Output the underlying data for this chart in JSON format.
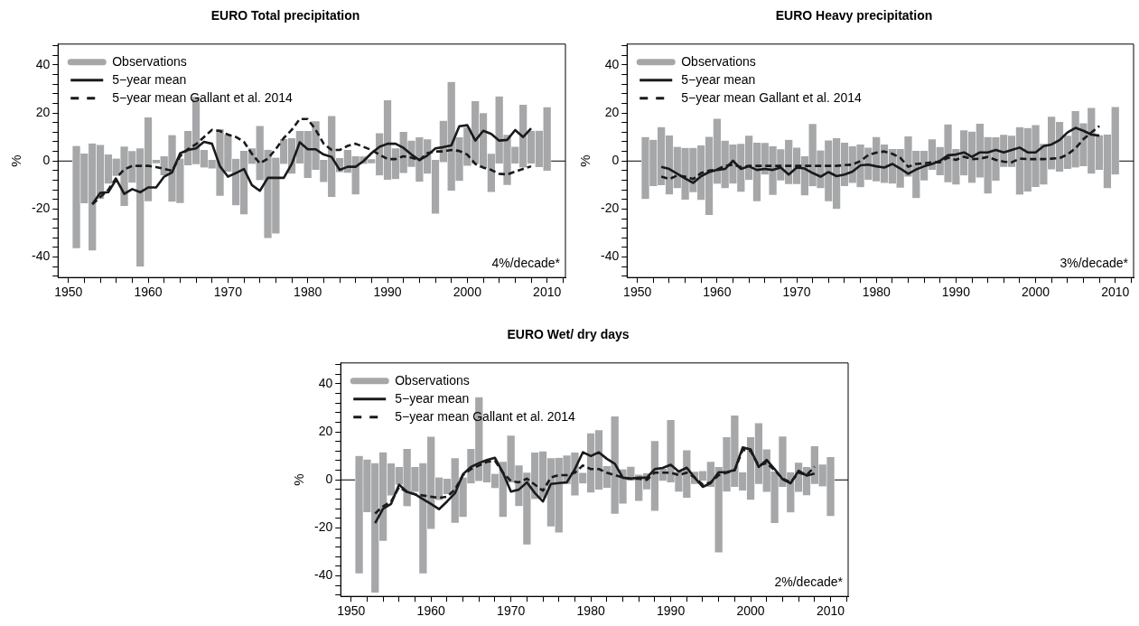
{
  "chart_data": [
    {
      "type": "bar",
      "title": "EURO Total precipitation",
      "ylabel": "%",
      "legend": "top left",
      "annotations": [
        "4%/decade*"
      ],
      "x": [
        1951,
        1952,
        1953,
        1954,
        1955,
        1956,
        1957,
        1958,
        1959,
        1960,
        1961,
        1962,
        1963,
        1964,
        1965,
        1966,
        1967,
        1968,
        1969,
        1970,
        1971,
        1972,
        1973,
        1974,
        1975,
        1976,
        1977,
        1978,
        1979,
        1980,
        1981,
        1982,
        1983,
        1984,
        1985,
        1986,
        1987,
        1988,
        1989,
        1990,
        1991,
        1992,
        1993,
        1994,
        1995,
        1996,
        1997,
        1998,
        1999,
        2000,
        2001,
        2002,
        2003,
        2004,
        2005,
        2006,
        2007,
        2008,
        2009,
        2010
      ],
      "xlim": [
        1948.7,
        2012.3
      ],
      "xticks": [
        1950,
        {
          "value": 1952,
          "label": null
        },
        {
          "value": 1954,
          "label": null
        },
        {
          "value": 1956,
          "label": null
        },
        {
          "value": 1958,
          "label": null
        },
        1960,
        {
          "value": 1962,
          "label": null
        },
        {
          "value": 1964,
          "label": null
        },
        {
          "value": 1966,
          "label": null
        },
        {
          "value": 1968,
          "label": null
        },
        1970,
        {
          "value": 1972,
          "label": null
        },
        {
          "value": 1974,
          "label": null
        },
        {
          "value": 1976,
          "label": null
        },
        {
          "value": 1978,
          "label": null
        },
        1980,
        {
          "value": 1982,
          "label": null
        },
        {
          "value": 1984,
          "label": null
        },
        {
          "value": 1986,
          "label": null
        },
        {
          "value": 1988,
          "label": null
        },
        1990,
        {
          "value": 1992,
          "label": null
        },
        {
          "value": 1994,
          "label": null
        },
        {
          "value": 1996,
          "label": null
        },
        {
          "value": 1998,
          "label": null
        },
        2000,
        {
          "value": 2002,
          "label": null
        },
        {
          "value": 2004,
          "label": null
        },
        {
          "value": 2006,
          "label": null
        },
        {
          "value": 2008,
          "label": null
        },
        2010,
        {
          "value": 2012,
          "label": null
        }
      ],
      "ylim": [
        -48.5,
        48.7
      ],
      "yticks": [
        {
          "value": -48,
          "label": null
        },
        {
          "value": -44,
          "label": null
        },
        -40,
        {
          "value": -36,
          "label": null
        },
        {
          "value": -32,
          "label": null
        },
        {
          "value": -28,
          "label": null
        },
        {
          "value": -24,
          "label": null
        },
        -20,
        {
          "value": -16,
          "label": null
        },
        {
          "value": -12,
          "label": null
        },
        {
          "value": -8,
          "label": null
        },
        {
          "value": -4,
          "label": null
        },
        0,
        {
          "value": 4,
          "label": null
        },
        {
          "value": 8,
          "label": null
        },
        {
          "value": 12,
          "label": null
        },
        {
          "value": 16,
          "label": null
        },
        20,
        {
          "value": 24,
          "label": null
        },
        {
          "value": 28,
          "label": null
        },
        {
          "value": 32,
          "label": null
        },
        {
          "value": 36,
          "label": null
        },
        40,
        {
          "value": 44,
          "label": null
        },
        {
          "value": 48,
          "label": null
        }
      ],
      "ref_lines": [
        {
          "axis": "y",
          "value": 0,
          "color": "#000000"
        }
      ],
      "series": [
        {
          "name": "Observations",
          "color": "#a6a7a9",
          "base": [
            -36.4,
            -17.7,
            -37.3,
            -15.9,
            -9.5,
            -6.3,
            -18.8,
            -9.1,
            -44,
            -16.7,
            -1,
            -6,
            -17,
            -17.6,
            -1.8,
            -1.3,
            -2.7,
            -3.2,
            -14.6,
            -4.4,
            -18.5,
            -22.3,
            -1.2,
            -8,
            -32.2,
            -30.3,
            -1.2,
            -5.3,
            -1,
            -7,
            -3.7,
            -8.8,
            -14.9,
            -4.7,
            -5,
            -14,
            -1.2,
            -1,
            -6,
            -7.8,
            -7.6,
            -5,
            -2.4,
            -8.6,
            -5.3,
            -22,
            -0.5,
            -12.4,
            -8.3,
            -2,
            -1.2,
            -3,
            -13,
            -1,
            -10,
            -1,
            -2.7,
            -1,
            -2.5,
            -4
          ],
          "values": [
            42.7,
            20.8,
            44.6,
            22.6,
            12.2,
            7.3,
            24.8,
            13.2,
            49.3,
            35,
            1.5,
            8,
            27.8,
            18.6,
            14.4,
            28.1,
            7.4,
            3.7,
            27.9,
            15.4,
            19.4,
            26.5,
            6.6,
            22.7,
            36.9,
            31.7,
            10.4,
            14.9,
            13.6,
            19.6,
            20.4,
            9.3,
            33.7,
            5.9,
            9.6,
            16,
            3.2,
            1.8,
            17.7,
            33.2,
            12.9,
            17.2,
            11,
            18.6,
            14.4,
            22.5,
            17.3,
            45.4,
            18.3,
            16,
            26.2,
            23,
            16,
            28,
            21,
            7,
            26.2,
            13.7,
            15.2,
            26.5
          ]
        },
        {
          "name": "5−year mean",
          "type": "line",
          "color": "#1a1a1a",
          "line_style": "solid",
          "x": [
            1953,
            1954,
            1955,
            1956,
            1957,
            1958,
            1959,
            1960,
            1961,
            1962,
            1963,
            1964,
            1965,
            1966,
            1967,
            1968,
            1969,
            1970,
            1971,
            1972,
            1973,
            1974,
            1975,
            1976,
            1977,
            1978,
            1979,
            1980,
            1981,
            1982,
            1983,
            1984,
            1985,
            1986,
            1987,
            1988,
            1989,
            1990,
            1991,
            1992,
            1993,
            1994,
            1995,
            1996,
            1997,
            1998,
            1999,
            2000,
            2001,
            2002,
            2003,
            2004,
            2005,
            2006,
            2007,
            2008
          ],
          "values": [
            -18,
            -13.3,
            -13,
            -7.6,
            -13.7,
            -11.7,
            -13,
            -11,
            -11,
            -6.5,
            -4.7,
            3.2,
            4.6,
            5.3,
            8,
            7.2,
            -2.2,
            -6.5,
            -5,
            -3.3,
            -10,
            -12.4,
            -7,
            -7,
            -7,
            -1.2,
            7.8,
            4.9,
            4.9,
            2.7,
            1.7,
            -3.7,
            -2.4,
            -2.4,
            0,
            3.3,
            5.9,
            7.2,
            7.2,
            5.5,
            2.7,
            0.4,
            2.3,
            5.3,
            5.8,
            6.5,
            14.5,
            14.9,
            8.5,
            12.6,
            11.3,
            8.5,
            8.8,
            12.9,
            10,
            13.6
          ]
        },
        {
          "name": "5−year mean Gallant et al. 2014",
          "type": "line",
          "color": "#1a1a1a",
          "line_style": "dashed",
          "x": [
            1953,
            1954,
            1955,
            1956,
            1957,
            1958,
            1959,
            1960,
            1961,
            1962,
            1963,
            1964,
            1965,
            1966,
            1967,
            1968,
            1969,
            1970,
            1971,
            1972,
            1973,
            1974,
            1975,
            1976,
            1977,
            1978,
            1979,
            1980,
            1981,
            1982,
            1983,
            1984,
            1985,
            1986,
            1987,
            1988,
            1989,
            1990,
            1991,
            1992,
            1993,
            1994,
            1995,
            1996,
            1997,
            1998,
            1999,
            2000,
            2001,
            2002,
            2003,
            2004,
            2005,
            2006,
            2007,
            2008
          ],
          "values": [
            -18,
            -15,
            -12,
            -7,
            -3.5,
            -2,
            -2,
            -2,
            -2.5,
            -3.3,
            -4,
            2,
            5,
            7,
            10,
            13,
            12.5,
            11,
            10,
            8,
            3,
            -1,
            1,
            5,
            9.6,
            13,
            17.5,
            17.5,
            13,
            7.2,
            4.6,
            4.6,
            6.3,
            7.2,
            5.9,
            4.6,
            2.7,
            0.8,
            0.8,
            2,
            1.4,
            0.4,
            3.3,
            4,
            4,
            4.6,
            4.2,
            2.7,
            -1.2,
            -2.7,
            -3.7,
            -5.3,
            -5.6,
            -4.4,
            -3.3,
            -2.2
          ]
        }
      ]
    },
    {
      "type": "bar",
      "title": "EURO Heavy precipitation",
      "ylabel": "%",
      "legend": "top left",
      "annotations": [
        "3%/decade*"
      ],
      "x": [
        1951,
        1952,
        1953,
        1954,
        1955,
        1956,
        1957,
        1958,
        1959,
        1960,
        1961,
        1962,
        1963,
        1964,
        1965,
        1966,
        1967,
        1968,
        1969,
        1970,
        1971,
        1972,
        1973,
        1974,
        1975,
        1976,
        1977,
        1978,
        1979,
        1980,
        1981,
        1982,
        1983,
        1984,
        1985,
        1986,
        1987,
        1988,
        1989,
        1990,
        1991,
        1992,
        1993,
        1994,
        1995,
        1996,
        1997,
        1998,
        1999,
        2000,
        2001,
        2002,
        2003,
        2004,
        2005,
        2006,
        2007,
        2008,
        2009,
        2010
      ],
      "xlim": [
        1948.7,
        2012.3
      ],
      "xticks": [
        1950,
        {
          "value": 1952,
          "label": null
        },
        {
          "value": 1954,
          "label": null
        },
        {
          "value": 1956,
          "label": null
        },
        {
          "value": 1958,
          "label": null
        },
        1960,
        {
          "value": 1962,
          "label": null
        },
        {
          "value": 1964,
          "label": null
        },
        {
          "value": 1966,
          "label": null
        },
        {
          "value": 1968,
          "label": null
        },
        1970,
        {
          "value": 1972,
          "label": null
        },
        {
          "value": 1974,
          "label": null
        },
        {
          "value": 1976,
          "label": null
        },
        {
          "value": 1978,
          "label": null
        },
        1980,
        {
          "value": 1982,
          "label": null
        },
        {
          "value": 1984,
          "label": null
        },
        {
          "value": 1986,
          "label": null
        },
        {
          "value": 1988,
          "label": null
        },
        1990,
        {
          "value": 1992,
          "label": null
        },
        {
          "value": 1994,
          "label": null
        },
        {
          "value": 1996,
          "label": null
        },
        {
          "value": 1998,
          "label": null
        },
        2000,
        {
          "value": 2002,
          "label": null
        },
        {
          "value": 2004,
          "label": null
        },
        {
          "value": 2006,
          "label": null
        },
        {
          "value": 2008,
          "label": null
        },
        2010,
        {
          "value": 2012,
          "label": null
        }
      ],
      "ylim": [
        -48.5,
        48.7
      ],
      "yticks": [
        {
          "value": -48,
          "label": null
        },
        {
          "value": -44,
          "label": null
        },
        -40,
        {
          "value": -36,
          "label": null
        },
        {
          "value": -32,
          "label": null
        },
        {
          "value": -28,
          "label": null
        },
        {
          "value": -24,
          "label": null
        },
        -20,
        {
          "value": -16,
          "label": null
        },
        {
          "value": -12,
          "label": null
        },
        {
          "value": -8,
          "label": null
        },
        {
          "value": -4,
          "label": null
        },
        0,
        {
          "value": 4,
          "label": null
        },
        {
          "value": 8,
          "label": null
        },
        {
          "value": 12,
          "label": null
        },
        {
          "value": 16,
          "label": null
        },
        20,
        {
          "value": 24,
          "label": null
        },
        {
          "value": 28,
          "label": null
        },
        {
          "value": 32,
          "label": null
        },
        {
          "value": 36,
          "label": null
        },
        40,
        {
          "value": 44,
          "label": null
        },
        {
          "value": 48,
          "label": null
        }
      ],
      "ref_lines": [
        {
          "axis": "y",
          "value": 0,
          "color": "#000000"
        }
      ],
      "series": [
        {
          "name": "Observations",
          "color": "#a6a7a9",
          "base": [
            -15.9,
            -10.5,
            -10.1,
            -14,
            -11.4,
            -16.2,
            -13.1,
            -16.3,
            -22.6,
            -9.5,
            -11.4,
            -9.5,
            -12.9,
            -7.9,
            -16.8,
            -5.6,
            -14.2,
            -8.2,
            -9.7,
            -9.7,
            -14.4,
            -10.5,
            -11.4,
            -16.8,
            -20,
            -10.5,
            -9.2,
            -11,
            -7.9,
            -8.5,
            -9.2,
            -9.5,
            -11.2,
            -6.5,
            -15.5,
            -8.2,
            -3.7,
            -5.9,
            -8.8,
            -9.9,
            -6,
            -9.1,
            -6.9,
            -13.6,
            -8.2,
            -2.4,
            -2.4,
            -14,
            -12.7,
            -10.8,
            -9.9,
            -3.5,
            -4.4,
            -3.3,
            -2.7,
            -2.2,
            -5.3,
            -3.7,
            -11.4,
            -5.6
          ],
          "values": [
            25.9,
            19.3,
            24.3,
            24.6,
            17.3,
            21.7,
            18.6,
            22.8,
            32.7,
            27.2,
            19.9,
            16.4,
            20.1,
            18.5,
            24.4,
            13.2,
            20.4,
            13.1,
            18.5,
            15.3,
            16.4,
            26,
            15.8,
            25.4,
            29.5,
            18.1,
            15.4,
            17.9,
            13.5,
            18.6,
            16.1,
            14.5,
            16.2,
            16.9,
            19.7,
            12.4,
            12.8,
            11.8,
            24.1,
            14.9,
            18.9,
            21.4,
            22.5,
            23.6,
            18.2,
            13.4,
            13,
            28.2,
            26.5,
            25.9,
            17.1,
            22,
            20.8,
            13.9,
            23.6,
            18,
            27.5,
            14.5,
            22.4,
            28.2
          ]
        },
        {
          "name": "5−year mean",
          "type": "line",
          "color": "#1a1a1a",
          "line_style": "solid",
          "x": [
            1953,
            1954,
            1955,
            1956,
            1957,
            1958,
            1959,
            1960,
            1961,
            1962,
            1963,
            1964,
            1965,
            1966,
            1967,
            1968,
            1969,
            1970,
            1971,
            1972,
            1973,
            1974,
            1975,
            1976,
            1977,
            1978,
            1979,
            1980,
            1981,
            1982,
            1983,
            1984,
            1985,
            1986,
            1987,
            1988,
            1989,
            1990,
            1991,
            1992,
            1993,
            1994,
            1995,
            1996,
            1997,
            1998,
            1999,
            2000,
            2001,
            2002,
            2003,
            2004,
            2005,
            2006,
            2007,
            2008
          ],
          "values": [
            -2.4,
            -3.3,
            -5.3,
            -7.3,
            -9.1,
            -6.3,
            -4.6,
            -3.7,
            -3.3,
            0.1,
            -3.3,
            -2.2,
            -3.7,
            -3.3,
            -3.7,
            -2.7,
            -5.6,
            -2.7,
            -3.1,
            -5,
            -6.5,
            -4.6,
            -6.3,
            -5.6,
            -4.4,
            -1.8,
            -1.5,
            -2.2,
            -2.7,
            -1.2,
            -3.1,
            -5.3,
            -3.5,
            -2.2,
            -1.2,
            0.1,
            2.4,
            2.7,
            3.6,
            1.7,
            3.6,
            3.6,
            4.6,
            3.6,
            4.6,
            5.6,
            3.6,
            3.6,
            6.2,
            6.9,
            8.7,
            11.9,
            13.8,
            12.6,
            11,
            10.6
          ]
        },
        {
          "name": "5−year mean Gallant et al. 2014",
          "type": "line",
          "color": "#1a1a1a",
          "line_style": "dashed",
          "x": [
            1953,
            1954,
            1955,
            1956,
            1957,
            1958,
            1959,
            1960,
            1961,
            1962,
            1963,
            1964,
            1965,
            1966,
            1967,
            1968,
            1969,
            1970,
            1971,
            1972,
            1973,
            1974,
            1975,
            1976,
            1977,
            1978,
            1979,
            1980,
            1981,
            1982,
            1983,
            1984,
            1985,
            1986,
            1987,
            1988,
            1989,
            1990,
            1991,
            1992,
            1993,
            1994,
            1995,
            1996,
            1997,
            1998,
            1999,
            2000,
            2001,
            2002,
            2003,
            2004,
            2005,
            2006,
            2007,
            2008
          ],
          "values": [
            -6.5,
            -7.5,
            -6,
            -6.5,
            -7.5,
            -5,
            -4,
            -3.5,
            -2,
            -1.5,
            -2.5,
            -2,
            -2,
            -2,
            -2,
            -2,
            -2,
            -2,
            -2,
            -2,
            -2,
            -2,
            -2,
            -1.7,
            -1.5,
            0,
            2.5,
            3.5,
            4,
            3,
            1.4,
            -2.4,
            -1.2,
            -1,
            -0.5,
            -0.5,
            1.4,
            0.5,
            1.8,
            0.8,
            1,
            1.7,
            0.5,
            -0.3,
            -0.5,
            1,
            0.8,
            0.8,
            0.8,
            1,
            1.2,
            2.7,
            5.3,
            9.1,
            11.9,
            14.6
          ]
        }
      ]
    },
    {
      "type": "bar",
      "title": "EURO Wet/ dry days",
      "ylabel": "%",
      "legend": "top left",
      "annotations": [
        "2%/decade*"
      ],
      "x": [
        1951,
        1952,
        1953,
        1954,
        1955,
        1956,
        1957,
        1958,
        1959,
        1960,
        1961,
        1962,
        1963,
        1964,
        1965,
        1966,
        1967,
        1968,
        1969,
        1970,
        1971,
        1972,
        1973,
        1974,
        1975,
        1976,
        1977,
        1978,
        1979,
        1980,
        1981,
        1982,
        1983,
        1984,
        1985,
        1986,
        1987,
        1988,
        1989,
        1990,
        1991,
        1992,
        1993,
        1994,
        1995,
        1996,
        1997,
        1998,
        1999,
        2000,
        2001,
        2002,
        2003,
        2004,
        2005,
        2006,
        2007,
        2008,
        2009,
        2010
      ],
      "xlim": [
        1948.7,
        2012.2
      ],
      "xticks": [
        1950,
        {
          "value": 1952,
          "label": null
        },
        {
          "value": 1954,
          "label": null
        },
        {
          "value": 1956,
          "label": null
        },
        {
          "value": 1958,
          "label": null
        },
        1960,
        {
          "value": 1962,
          "label": null
        },
        {
          "value": 1964,
          "label": null
        },
        {
          "value": 1966,
          "label": null
        },
        {
          "value": 1968,
          "label": null
        },
        1970,
        {
          "value": 1972,
          "label": null
        },
        {
          "value": 1974,
          "label": null
        },
        {
          "value": 1976,
          "label": null
        },
        {
          "value": 1978,
          "label": null
        },
        1980,
        {
          "value": 1982,
          "label": null
        },
        {
          "value": 1984,
          "label": null
        },
        {
          "value": 1986,
          "label": null
        },
        {
          "value": 1988,
          "label": null
        },
        1990,
        {
          "value": 1992,
          "label": null
        },
        {
          "value": 1994,
          "label": null
        },
        {
          "value": 1996,
          "label": null
        },
        {
          "value": 1998,
          "label": null
        },
        2000,
        {
          "value": 2002,
          "label": null
        },
        {
          "value": 2004,
          "label": null
        },
        {
          "value": 2006,
          "label": null
        },
        {
          "value": 2008,
          "label": null
        },
        2010,
        {
          "value": 2012,
          "label": null
        }
      ],
      "ylim": [
        -48.5,
        48.7
      ],
      "yticks": [
        {
          "value": -48,
          "label": null
        },
        {
          "value": -44,
          "label": null
        },
        -40,
        {
          "value": -36,
          "label": null
        },
        {
          "value": -32,
          "label": null
        },
        {
          "value": -28,
          "label": null
        },
        {
          "value": -24,
          "label": null
        },
        -20,
        {
          "value": -16,
          "label": null
        },
        {
          "value": -12,
          "label": null
        },
        {
          "value": -8,
          "label": null
        },
        {
          "value": -4,
          "label": null
        },
        0,
        {
          "value": 4,
          "label": null
        },
        {
          "value": 8,
          "label": null
        },
        {
          "value": 12,
          "label": null
        },
        {
          "value": 16,
          "label": null
        },
        20,
        {
          "value": 24,
          "label": null
        },
        {
          "value": 28,
          "label": null
        },
        {
          "value": 32,
          "label": null
        },
        {
          "value": 36,
          "label": null
        },
        40,
        {
          "value": 44,
          "label": null
        },
        {
          "value": 48,
          "label": null
        }
      ],
      "ref_lines": [
        {
          "axis": "y",
          "value": 0,
          "color": "#000000"
        }
      ],
      "series": [
        {
          "name": "Observations",
          "color": "#a6a7a9",
          "base": [
            -39,
            -13.5,
            -47,
            -25.5,
            -6.5,
            -2,
            -11,
            -5,
            -39,
            -20.5,
            -8.5,
            -6,
            -18,
            -15.5,
            -1.5,
            -0.5,
            -1,
            -3.5,
            -15.5,
            -1,
            -11,
            -27,
            -8,
            -7.5,
            -19.5,
            -22,
            -1.7,
            -6.5,
            -1.5,
            -5.3,
            -4,
            -3.3,
            -14.1,
            -10,
            -0.4,
            -8.8,
            -4,
            -12.9,
            -0.4,
            -1,
            -5,
            -7.4,
            -1.7,
            -0.4,
            -2.9,
            -30.3,
            -4.9,
            -2.9,
            -4.5,
            -8.3,
            -1.7,
            -5,
            -18.1,
            -2.9,
            -13.6,
            -5,
            -6.5,
            -1.7,
            -2.7,
            -15.1
          ],
          "values": [
            49,
            22,
            54,
            37,
            13.5,
            7.5,
            24,
            10.5,
            46,
            38.5,
            9.5,
            6.5,
            27,
            16.5,
            14.5,
            35,
            9,
            6,
            23,
            19.5,
            17,
            30,
            19.5,
            19.5,
            28.5,
            31.2,
            12,
            18,
            4.5,
            24.8,
            24.8,
            9.1,
            40.6,
            14.4,
            6,
            11,
            6.8,
            29.2,
            5.1,
            26,
            8.5,
            19.8,
            5.2,
            4.2,
            10.5,
            35.7,
            22.8,
            29.8,
            7.7,
            26.2,
            25.4,
            17.8,
            21.6,
            21.1,
            16.8,
            12.3,
            11.9,
            15.8,
            9.2,
            24.6
          ]
        },
        {
          "name": "5−year mean",
          "type": "line",
          "color": "#1a1a1a",
          "line_style": "solid",
          "x": [
            1953,
            1954,
            1955,
            1956,
            1957,
            1958,
            1959,
            1960,
            1961,
            1962,
            1963,
            1964,
            1965,
            1966,
            1967,
            1968,
            1969,
            1970,
            1971,
            1972,
            1973,
            1974,
            1975,
            1976,
            1977,
            1978,
            1979,
            1980,
            1981,
            1982,
            1983,
            1984,
            1985,
            1986,
            1987,
            1988,
            1989,
            1990,
            1991,
            1992,
            1993,
            1994,
            1995,
            1996,
            1997,
            1998,
            1999,
            2000,
            2001,
            2002,
            2003,
            2004,
            2005,
            2006,
            2007,
            2008
          ],
          "values": [
            -18,
            -12,
            -10,
            -2,
            -5,
            -6,
            -8,
            -10,
            -12.2,
            -9,
            -5.5,
            2.4,
            5.4,
            7,
            8.3,
            9.2,
            3,
            -4.9,
            -4,
            -1,
            -5.5,
            -9,
            -1.7,
            -1.3,
            -1,
            4.5,
            11.5,
            9.9,
            11.5,
            8.8,
            6.7,
            0.9,
            0.6,
            0.9,
            0.9,
            4.5,
            5,
            6.3,
            3.5,
            5.1,
            0.9,
            -2.9,
            -1.3,
            3.2,
            3.2,
            4.1,
            13.5,
            12.7,
            5.4,
            8.3,
            4.5,
            0.3,
            -1.4,
            3.8,
            1.8,
            2.6
          ]
        },
        {
          "name": "5−year mean Gallant et al. 2014",
          "type": "line",
          "color": "#1a1a1a",
          "line_style": "dashed",
          "x": [
            1953,
            1954,
            1955,
            1956,
            1957,
            1958,
            1959,
            1960,
            1961,
            1962,
            1963,
            1964,
            1965,
            1966,
            1967,
            1968,
            1969,
            1970,
            1971,
            1972,
            1973,
            1974,
            1975,
            1976,
            1977,
            1978,
            1979,
            1980,
            1981,
            1982,
            1983,
            1984,
            1985,
            1986,
            1987,
            1988,
            1989,
            1990,
            1991,
            1992,
            1993,
            1994,
            1995,
            1996,
            1997,
            1998,
            1999,
            2000,
            2001,
            2002,
            2003,
            2004,
            2005,
            2006,
            2007,
            2008
          ],
          "values": [
            -14,
            -11,
            -9,
            -3,
            -5,
            -6,
            -6.5,
            -7,
            -7.5,
            -7,
            -4,
            2,
            4.5,
            6,
            7.5,
            8,
            3,
            -0.5,
            -1,
            0.5,
            -2,
            -4.5,
            1,
            2,
            2,
            3,
            6,
            4.5,
            4.5,
            3,
            2,
            1,
            0.5,
            0.5,
            0,
            3,
            3,
            3,
            2,
            3,
            1,
            -2,
            -1,
            2,
            3,
            4,
            12.5,
            12,
            6,
            7,
            4,
            0.5,
            -1,
            3,
            2,
            5.5
          ]
        }
      ]
    }
  ]
}
